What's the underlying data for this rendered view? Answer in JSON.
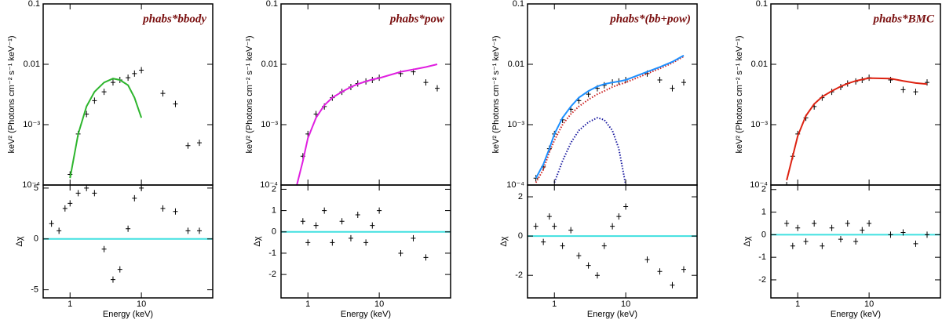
{
  "chart_data": [
    {
      "type": "line",
      "title": "phabs*bbody",
      "xlabel": "Energy (keV)",
      "ylabel": "keV² (Photons cm⁻² s⁻¹ keV⁻¹)",
      "log_x": true,
      "log_y": true,
      "xlim": [
        0.42,
        100
      ],
      "xticks": [
        1,
        10
      ],
      "ylim": [
        0.0001,
        0.1
      ],
      "yticks": [
        {
          "value": 0.0001,
          "label": "10⁻⁴"
        },
        {
          "value": 0.001,
          "label": "10⁻³"
        },
        0.01,
        0.1
      ],
      "x": [
        0.55,
        0.7,
        0.85,
        1.0,
        1.3,
        1.7,
        2.2,
        3,
        4,
        5,
        6.5,
        8,
        10,
        20,
        30,
        45,
        65
      ],
      "series": [
        {
          "style": "markers",
          "color": "#000000",
          "values": [
            null,
            null,
            null,
            0.00015,
            0.0007,
            0.0015,
            0.0025,
            0.0035,
            0.005,
            0.0055,
            0.006,
            0.007,
            0.008,
            0.0033,
            0.0022,
            0.00045,
            0.0005
          ]
        },
        {
          "style": "line",
          "color": "#2db52d",
          "values": [
            null,
            null,
            null,
            0.00013,
            0.0007,
            0.002,
            0.0035,
            0.005,
            0.0058,
            0.0055,
            0.0045,
            0.0028,
            0.0013,
            null,
            null,
            null,
            null
          ]
        }
      ],
      "residuals": {
        "ylabel": "Δχ",
        "ylim": [
          -5.8,
          5.3
        ],
        "yticks": [
          -5,
          0,
          5
        ],
        "hline": 0,
        "hline_color": "#40e0e0",
        "color": "#000000",
        "values": [
          1.5,
          0.8,
          3,
          3.5,
          4.5,
          5,
          4.5,
          -1,
          -4,
          -3,
          1,
          4,
          5,
          3,
          2.7,
          0.8,
          0.8
        ]
      }
    },
    {
      "type": "line",
      "title": "phabs*pow",
      "xlabel": "Energy (keV)",
      "ylabel": "keV² (Photons cm⁻² s⁻¹ keV⁻¹)",
      "log_x": true,
      "log_y": true,
      "xlim": [
        0.42,
        100
      ],
      "xticks": [
        1,
        10
      ],
      "ylim": [
        0.0001,
        0.1
      ],
      "yticks": [
        {
          "value": 0.0001,
          "label": "10⁻⁴"
        },
        {
          "value": 0.001,
          "label": "10⁻³"
        },
        0.01,
        0.1
      ],
      "x": [
        0.55,
        0.7,
        0.85,
        1.0,
        1.3,
        1.7,
        2.2,
        3,
        4,
        5,
        6.5,
        8,
        10,
        20,
        30,
        45,
        65
      ],
      "series": [
        {
          "style": "markers",
          "color": "#000000",
          "values": [
            null,
            null,
            0.0003,
            0.0007,
            0.0015,
            0.002,
            0.0028,
            0.0035,
            0.0042,
            0.0048,
            0.0052,
            0.0055,
            0.006,
            0.007,
            0.0075,
            0.005,
            0.004
          ]
        },
        {
          "style": "line",
          "color": "#e020e0",
          "values": [
            null,
            0.0001,
            0.00025,
            0.0006,
            0.0013,
            0.0021,
            0.0028,
            0.0035,
            0.0042,
            0.0047,
            0.0052,
            0.0056,
            0.0059,
            0.0075,
            0.0082,
            0.009,
            0.01
          ]
        }
      ],
      "residuals": {
        "ylabel": "Δχ",
        "ylim": [
          -3.1,
          2.2
        ],
        "yticks": [
          -2,
          -1,
          0,
          1,
          2
        ],
        "hline": 0,
        "hline_color": "#40e0e0",
        "color": "#000000",
        "values": [
          null,
          null,
          0.5,
          -0.5,
          0.3,
          1,
          -0.5,
          0.5,
          -0.3,
          0.8,
          -0.5,
          0.3,
          1,
          -1,
          -0.3,
          -1.2,
          null
        ]
      }
    },
    {
      "type": "line",
      "title": "phabs*(bb+pow)",
      "xlabel": "Energy (keV)",
      "ylabel": "keV² (Photons cm⁻² s⁻¹ keV⁻¹)",
      "log_x": true,
      "log_y": true,
      "xlim": [
        0.42,
        100
      ],
      "xticks": [
        1,
        10
      ],
      "ylim": [
        0.0001,
        0.1
      ],
      "yticks": [
        {
          "value": 0.0001,
          "label": "10⁻⁴"
        },
        {
          "value": 0.001,
          "label": "10⁻³"
        },
        0.01,
        0.1
      ],
      "x": [
        0.55,
        0.7,
        0.85,
        1.0,
        1.3,
        1.7,
        2.2,
        3,
        4,
        5,
        6.5,
        8,
        10,
        20,
        30,
        45,
        65
      ],
      "series": [
        {
          "style": "markers",
          "color": "#000000",
          "values": [
            0.00013,
            0.0002,
            0.0004,
            0.0007,
            0.0012,
            0.0018,
            0.0025,
            0.0032,
            0.004,
            0.0045,
            0.005,
            0.0052,
            0.0055,
            0.007,
            0.0055,
            0.004,
            0.005
          ]
        },
        {
          "style": "dotted",
          "color": "#cc2222",
          "values": [
            0.00011,
            0.00018,
            0.00035,
            0.00055,
            0.001,
            0.0015,
            0.002,
            0.0026,
            0.0032,
            0.0036,
            0.0042,
            0.0046,
            0.005,
            0.007,
            0.0085,
            0.0105,
            0.0135
          ]
        },
        {
          "style": "dotted",
          "color": "#1a1aa0",
          "values": [
            null,
            null,
            null,
            0.00011,
            0.00025,
            0.0005,
            0.0008,
            0.0011,
            0.0013,
            0.0012,
            0.0008,
            0.0004,
            0.0001,
            null,
            null,
            null,
            null
          ]
        },
        {
          "style": "line",
          "color": "#1e90ff",
          "values": [
            0.00013,
            0.00022,
            0.0004,
            0.0007,
            0.0013,
            0.002,
            0.0028,
            0.0036,
            0.0043,
            0.0047,
            0.005,
            0.0052,
            0.0055,
            0.0075,
            0.009,
            0.011,
            0.014
          ]
        }
      ],
      "residuals": {
        "ylabel": "Δχ",
        "ylim": [
          -3.15,
          2.6
        ],
        "yticks": [
          -2,
          0,
          2
        ],
        "hline": 0,
        "hline_color": "#40e0e0",
        "color": "#000000",
        "values": [
          0.5,
          -0.3,
          1,
          0.5,
          -0.5,
          0.3,
          -1,
          -1.5,
          -2,
          -0.5,
          0.5,
          1,
          1.5,
          -1.2,
          -1.8,
          -2.5,
          -1.7
        ]
      }
    },
    {
      "type": "line",
      "title": "phabs*BMC",
      "xlabel": "Energy (keV)",
      "ylabel": "keV² (Photons cm⁻² s⁻¹ keV⁻¹)",
      "log_x": true,
      "log_y": true,
      "xlim": [
        0.42,
        100
      ],
      "xticks": [
        1,
        10
      ],
      "ylim": [
        0.0001,
        0.1
      ],
      "yticks": [
        {
          "value": 0.0001,
          "label": "10⁻⁴"
        },
        {
          "value": 0.001,
          "label": "10⁻³"
        },
        0.01,
        0.1
      ],
      "x": [
        0.55,
        0.7,
        0.85,
        1.0,
        1.3,
        1.7,
        2.2,
        3,
        4,
        5,
        6.5,
        8,
        10,
        20,
        30,
        45,
        65
      ],
      "series": [
        {
          "style": "markers",
          "color": "#000000",
          "values": [
            null,
            0.0001,
            0.0003,
            0.0007,
            0.0013,
            0.002,
            0.0028,
            0.0035,
            0.0042,
            0.0048,
            0.0052,
            0.0055,
            0.006,
            0.0055,
            0.0038,
            0.0035,
            0.005
          ]
        },
        {
          "style": "line",
          "color": "#dd2211",
          "values": [
            null,
            0.00012,
            0.0003,
            0.00065,
            0.0014,
            0.0022,
            0.0029,
            0.0036,
            0.0043,
            0.0048,
            0.0053,
            0.0056,
            0.0059,
            0.0058,
            0.0053,
            0.0049,
            0.0047
          ]
        }
      ],
      "residuals": {
        "ylabel": "Δχ",
        "ylim": [
          -2.8,
          2.2
        ],
        "yticks": [
          -2,
          -1,
          0,
          1,
          2
        ],
        "hline": 0,
        "hline_color": "#40e0e0",
        "color": "#000000",
        "values": [
          null,
          0.5,
          -0.5,
          0.3,
          -0.3,
          0.5,
          -0.5,
          0.3,
          -0.2,
          0.5,
          -0.3,
          0.2,
          0.5,
          0,
          0.1,
          -0.4,
          0
        ]
      }
    }
  ]
}
